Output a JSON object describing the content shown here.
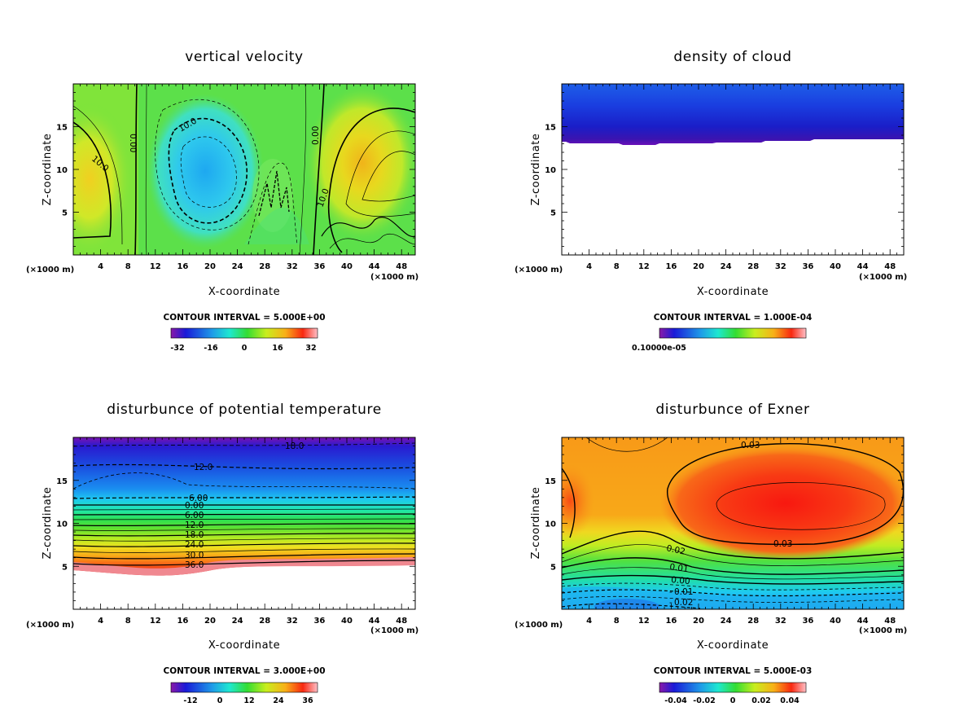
{
  "chart_data": [
    {
      "type": "heatmap",
      "title": "vertical velocity",
      "xlabel": "X-coordinate",
      "ylabel": "Z-coordinate",
      "x_unit": "(×1000 m)",
      "x_ticks": [
        4,
        8,
        12,
        16,
        20,
        24,
        28,
        32,
        36,
        40,
        44,
        48
      ],
      "y_ticks": [
        5,
        10,
        15
      ],
      "xlim": [
        0,
        50
      ],
      "ylim": [
        0,
        20
      ],
      "contour_interval": "CONTOUR INTERVAL = 5.000E+00",
      "colorbar_ticks": [
        "-32",
        "-16",
        "0",
        "16",
        "32"
      ],
      "contour_labels": [
        "10.0",
        "0.00",
        "10.0",
        "0.00",
        "10.0"
      ]
    },
    {
      "type": "heatmap",
      "title": "density of cloud",
      "xlabel": "X-coordinate",
      "ylabel": "Z-coordinate",
      "x_unit": "(×1000 m)",
      "x_ticks": [
        4,
        8,
        12,
        16,
        20,
        24,
        28,
        32,
        36,
        40,
        44,
        48
      ],
      "y_ticks": [
        5,
        10,
        15
      ],
      "xlim": [
        0,
        50
      ],
      "ylim": [
        0,
        20
      ],
      "contour_interval": "CONTOUR INTERVAL = 1.000E-04",
      "colorbar_ticks": [
        "0.10000e-05"
      ],
      "contour_labels": []
    },
    {
      "type": "heatmap",
      "title": "disturbunce of potential temperature",
      "xlabel": "X-coordinate",
      "ylabel": "Z-coordinate",
      "x_unit": "(×1000 m)",
      "x_ticks": [
        4,
        8,
        12,
        16,
        20,
        24,
        28,
        32,
        36,
        40,
        44,
        48
      ],
      "y_ticks": [
        5,
        10,
        15
      ],
      "xlim": [
        0,
        50
      ],
      "ylim": [
        0,
        20
      ],
      "contour_interval": "CONTOUR INTERVAL = 3.000E+00",
      "colorbar_ticks": [
        "-12",
        "0",
        "12",
        "24",
        "36"
      ],
      "contour_labels": [
        "18.0",
        "12.0",
        "6.00",
        "0.00",
        "6.00",
        "12.0",
        "18.0",
        "24.0",
        "30.0",
        "36.0"
      ]
    },
    {
      "type": "heatmap",
      "title": "disturbunce of Exner",
      "xlabel": "X-coordinate",
      "ylabel": "Z-coordinate",
      "x_unit": "(×1000 m)",
      "x_ticks": [
        4,
        8,
        12,
        16,
        20,
        24,
        28,
        32,
        36,
        40,
        44,
        48
      ],
      "y_ticks": [
        5,
        10,
        15
      ],
      "xlim": [
        0,
        50
      ],
      "ylim": [
        0,
        20
      ],
      "contour_interval": "CONTOUR INTERVAL = 5.000E-03",
      "colorbar_ticks": [
        "-0.04",
        "-0.02",
        "0",
        "0.02",
        "0.04"
      ],
      "contour_labels": [
        "0.03",
        "0.03",
        "0.02",
        "0.01",
        "0.00",
        "0.01",
        "0.02"
      ]
    }
  ]
}
